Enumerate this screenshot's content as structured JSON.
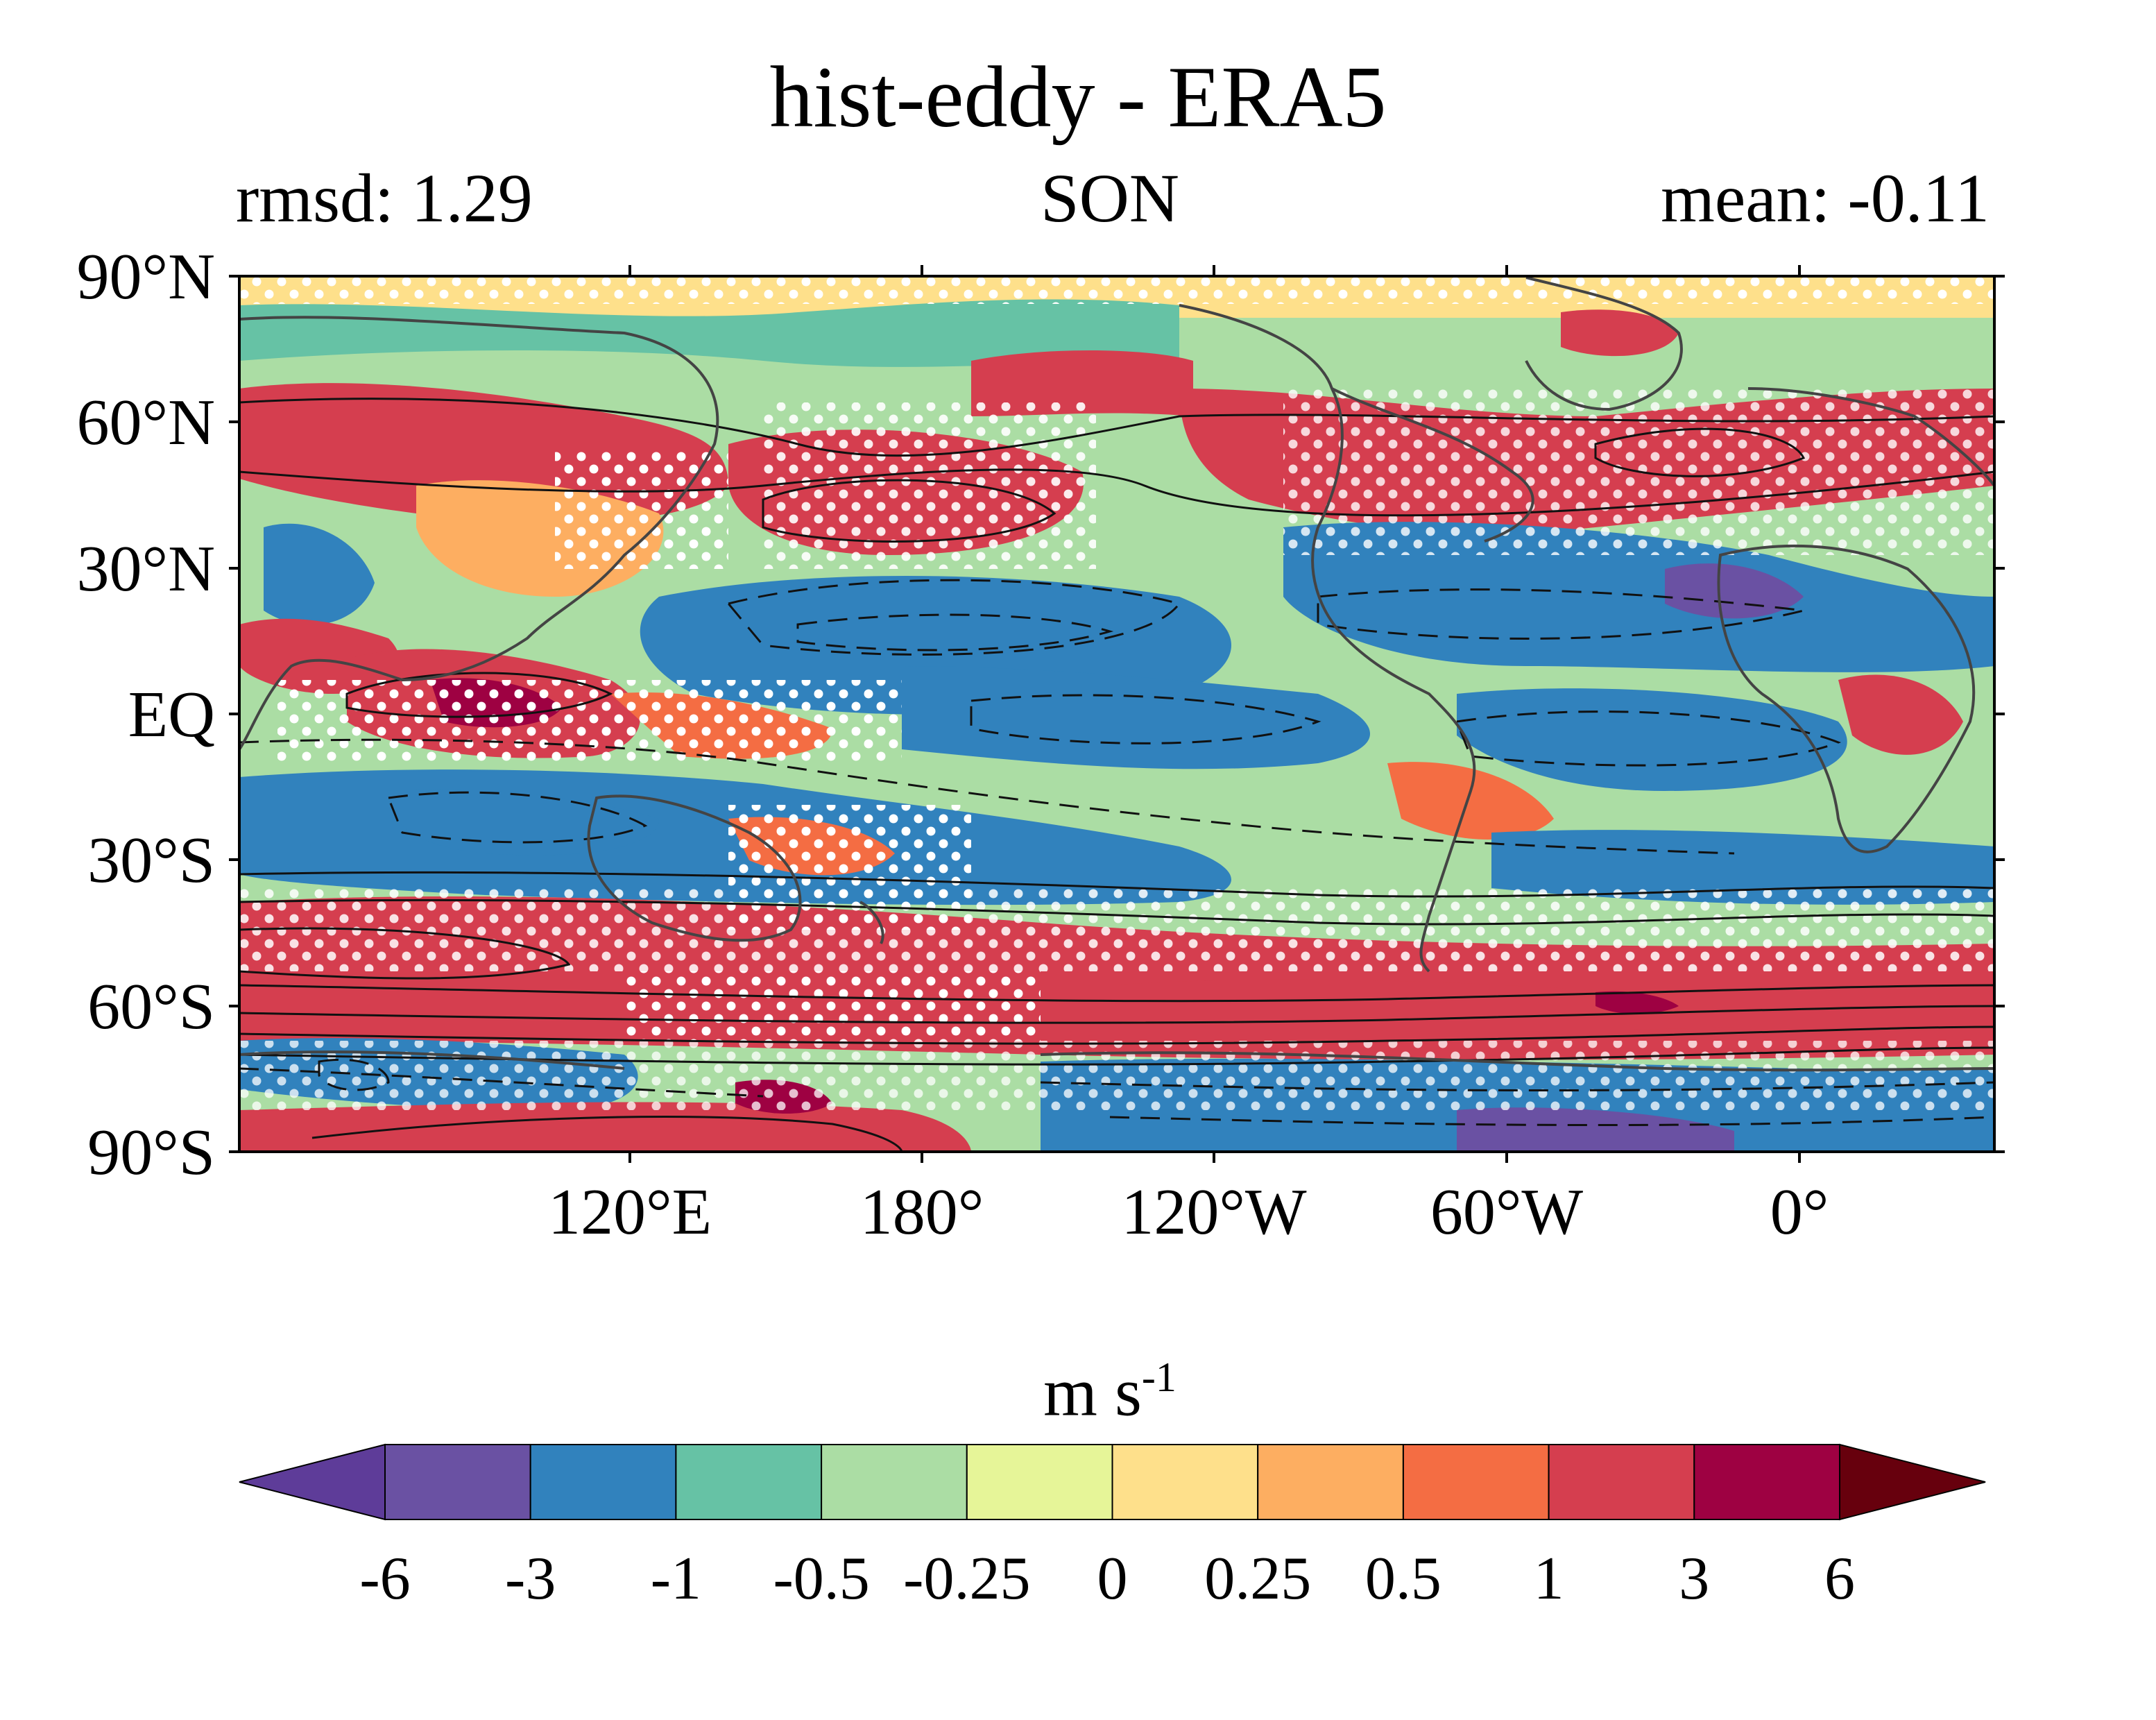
{
  "title": "hist-eddy - ERA5",
  "subtitle_left": "rmsd: 1.29",
  "subtitle_center": "SON",
  "subtitle_right": "mean: -0.11",
  "lat_labels": [
    "90°N",
    "60°N",
    "30°N",
    "EQ",
    "30°S",
    "60°S",
    "90°S"
  ],
  "lon_labels": [
    "120°E",
    "180°",
    "120°W",
    "60°W",
    "0°"
  ],
  "colorbar": {
    "units": "m s",
    "units_exponent": "-1",
    "tick_labels": [
      "-6",
      "-3",
      "-1",
      "-0.5",
      "-0.25",
      "0",
      "0.25",
      "0.5",
      "1",
      "3",
      "6"
    ],
    "colors": [
      "#5e3c99",
      "#6a51a3",
      "#3182bd",
      "#66c2a5",
      "#abdda4",
      "#e6f598",
      "#fee08b",
      "#fdae61",
      "#f46d43",
      "#d53e4f",
      "#9e0142",
      "#67000d"
    ]
  },
  "map": {
    "projection": "equirectangular",
    "lon_range": [
      40,
      400
    ],
    "lat_range": [
      -90,
      90
    ],
    "stippling": "white dots mark significant regions",
    "contours": "solid = positive, dashed = negative"
  }
}
